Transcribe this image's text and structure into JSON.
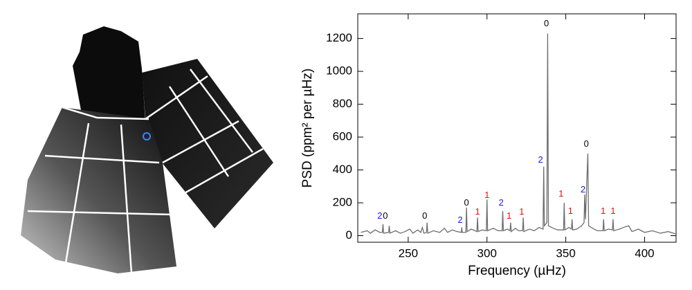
{
  "chart_data": {
    "type": "line",
    "xlabel": "Frequency (µHz)",
    "ylabel": "PSD (ppm² per µHz)",
    "xlim": [
      218,
      420
    ],
    "ylim": [
      -40,
      1350
    ],
    "xticks": [
      250,
      300,
      350,
      400
    ],
    "yticks": [
      0,
      200,
      400,
      600,
      800,
      1000,
      1200
    ],
    "x": [
      220,
      224,
      226,
      229,
      232,
      233.6,
      234,
      234.4,
      237.6,
      238,
      238.4,
      242,
      245,
      248,
      251,
      253,
      256,
      258,
      259,
      260,
      261.6,
      262,
      262.4,
      266,
      270,
      273,
      275,
      278,
      281,
      283.7,
      284,
      284.3,
      286.6,
      287,
      287.4,
      290,
      293.6,
      294,
      294.4,
      297,
      299.6,
      300,
      300.4,
      304,
      307,
      309.6,
      310,
      310.4,
      313,
      314.6,
      315,
      315.4,
      318,
      320,
      322.6,
      323,
      323.4,
      327,
      330,
      333,
      335.6,
      336,
      336.4,
      338,
      338.5,
      339,
      342,
      345,
      348.6,
      349,
      349.4,
      352,
      353.6,
      354,
      354.4,
      357,
      360,
      361.6,
      362,
      362.5,
      364,
      364.5,
      367,
      370,
      373.6,
      374,
      374.4,
      377,
      379.6,
      380,
      380.4,
      384,
      388,
      390,
      392,
      396,
      400,
      405,
      410,
      415,
      420
    ],
    "series": [
      {
        "color": "#6e6e6e",
        "values": [
          20,
          30,
          15,
          35,
          20,
          20,
          70,
          15,
          20,
          60,
          15,
          30,
          15,
          25,
          40,
          15,
          35,
          20,
          50,
          15,
          20,
          80,
          15,
          30,
          20,
          45,
          20,
          35,
          25,
          20,
          50,
          20,
          20,
          170,
          25,
          40,
          25,
          110,
          25,
          35,
          30,
          220,
          30,
          45,
          30,
          30,
          150,
          30,
          40,
          30,
          80,
          25,
          45,
          30,
          30,
          110,
          25,
          40,
          30,
          50,
          40,
          420,
          60,
          80,
          1230,
          60,
          45,
          35,
          35,
          200,
          35,
          50,
          40,
          100,
          35,
          40,
          60,
          80,
          250,
          100,
          500,
          60,
          45,
          30,
          30,
          100,
          30,
          40,
          35,
          100,
          30,
          40,
          55,
          60,
          25,
          40,
          20,
          30,
          15,
          25,
          10
        ]
      }
    ],
    "annotations": [
      {
        "text": "2",
        "x": 232,
        "y": 118,
        "color": "#1a1ae0"
      },
      {
        "text": "0",
        "x": 235.5,
        "y": 118,
        "color": "#000000"
      },
      {
        "text": "0",
        "x": 260.5,
        "y": 118,
        "color": "#000000"
      },
      {
        "text": "2",
        "x": 283,
        "y": 93,
        "color": "#1a1ae0"
      },
      {
        "text": "0",
        "x": 287,
        "y": 198,
        "color": "#000000"
      },
      {
        "text": "1",
        "x": 294,
        "y": 143,
        "color": "#e01010"
      },
      {
        "text": "1",
        "x": 300,
        "y": 244,
        "color": "#e01010"
      },
      {
        "text": "2",
        "x": 309,
        "y": 198,
        "color": "#1a1ae0"
      },
      {
        "text": "1",
        "x": 314,
        "y": 118,
        "color": "#e01010"
      },
      {
        "text": "1",
        "x": 322,
        "y": 143,
        "color": "#e01010"
      },
      {
        "text": "2",
        "x": 334,
        "y": 459,
        "color": "#1a1ae0"
      },
      {
        "text": "0",
        "x": 337.7,
        "y": 1288,
        "color": "#000000"
      },
      {
        "text": "1",
        "x": 347,
        "y": 253,
        "color": "#e01010"
      },
      {
        "text": "1",
        "x": 353,
        "y": 147,
        "color": "#e01010"
      },
      {
        "text": "2",
        "x": 361,
        "y": 278,
        "color": "#1a1ae0"
      },
      {
        "text": "0",
        "x": 363,
        "y": 556,
        "color": "#000000"
      },
      {
        "text": "1",
        "x": 373.7,
        "y": 147,
        "color": "#e01010"
      },
      {
        "text": "1",
        "x": 380,
        "y": 147,
        "color": "#e01010"
      }
    ]
  }
}
